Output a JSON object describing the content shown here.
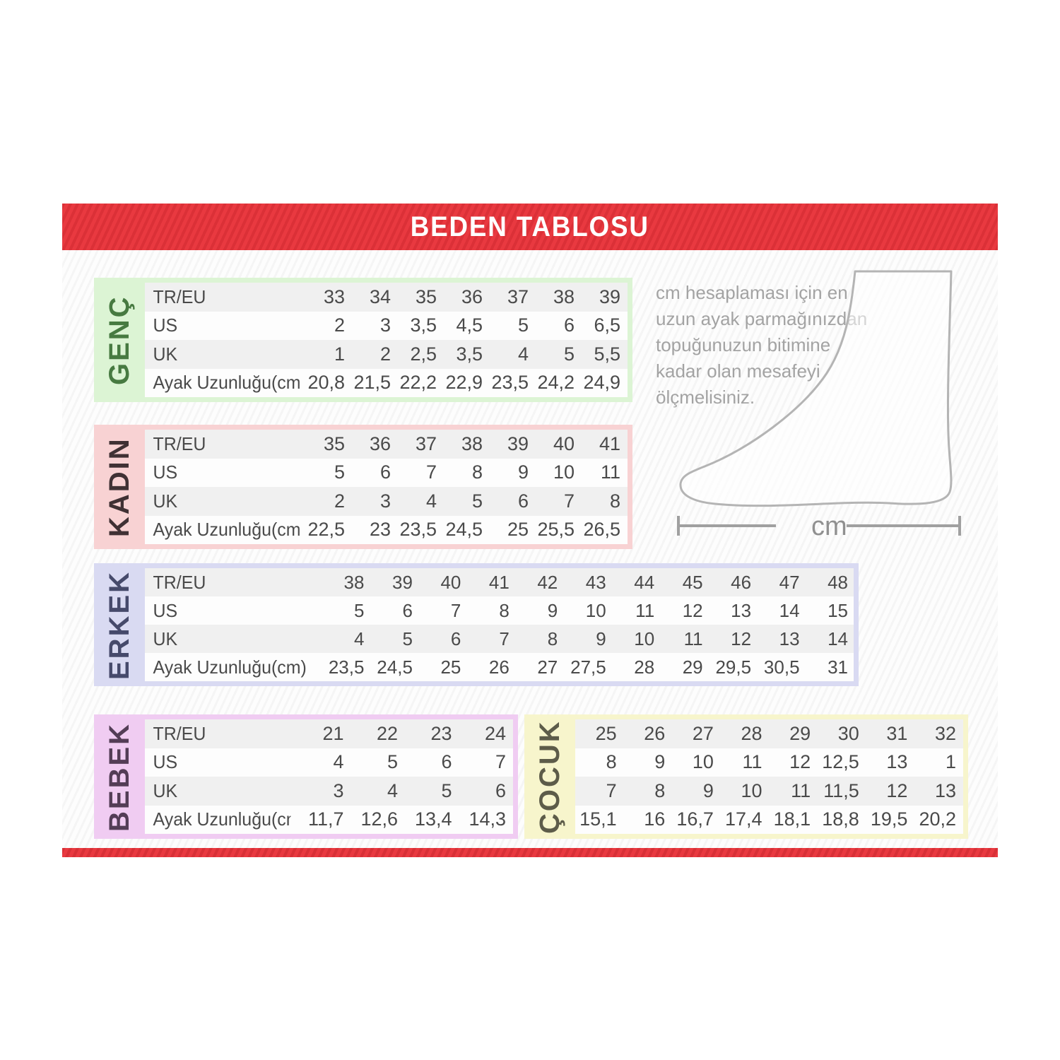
{
  "title": "BEDEN TABLOSU",
  "info": {
    "text": "cm hesaplaması için en uzun ayak parmağınızdan topuğunuzun bitimine kadar olan mesafeyi ölçmelisiniz.",
    "measure_label": "cm"
  },
  "colors": {
    "accent_red": "#e8333a",
    "table_text": "#4a4a4a",
    "info_text": "#a3a3a3",
    "foot_outline": "#b4b4b4",
    "measure_line": "#a0a0a0"
  },
  "tables": [
    {
      "key": "genc",
      "label": "GENÇ",
      "frame_color": "#dcf4d4",
      "label_color": "#477a41",
      "row_headers": [
        "TR/EU",
        "US",
        "UK",
        "Ayak Uzunluğu(cm)"
      ],
      "rows": [
        [
          "33",
          "34",
          "35",
          "36",
          "37",
          "38",
          "39"
        ],
        [
          "2",
          "3",
          "3,5",
          "4,5",
          "5",
          "6",
          "6,5"
        ],
        [
          "1",
          "2",
          "2,5",
          "3,5",
          "4",
          "5",
          "5,5"
        ],
        [
          "20,8",
          "21,5",
          "22,2",
          "22,9",
          "23,5",
          "24,2",
          "24,9"
        ]
      ]
    },
    {
      "key": "kadin",
      "label": "KADIN",
      "frame_color": "#f8d2d3",
      "label_color": "#403134",
      "row_headers": [
        "TR/EU",
        "US",
        "UK",
        "Ayak Uzunluğu(cm)"
      ],
      "rows": [
        [
          "35",
          "36",
          "37",
          "38",
          "39",
          "40",
          "41"
        ],
        [
          "5",
          "6",
          "7",
          "8",
          "9",
          "10",
          "11"
        ],
        [
          "2",
          "3",
          "4",
          "5",
          "6",
          "7",
          "8"
        ],
        [
          "22,5",
          "23",
          "23,5",
          "24,5",
          "25",
          "25,5",
          "26,5"
        ]
      ]
    },
    {
      "key": "erkek",
      "label": "ERKEK",
      "frame_color": "#d9daf2",
      "label_color": "#464a6b",
      "row_headers": [
        "TR/EU",
        "US",
        "UK",
        "Ayak Uzunluğu(cm)"
      ],
      "rows": [
        [
          "38",
          "39",
          "40",
          "41",
          "42",
          "43",
          "44",
          "45",
          "46",
          "47",
          "48"
        ],
        [
          "5",
          "6",
          "7",
          "8",
          "9",
          "10",
          "11",
          "12",
          "13",
          "14",
          "15"
        ],
        [
          "4",
          "5",
          "6",
          "7",
          "8",
          "9",
          "10",
          "11",
          "12",
          "13",
          "14"
        ],
        [
          "23,5",
          "24,5",
          "25",
          "26",
          "27",
          "27,5",
          "28",
          "29",
          "29,5",
          "30,5",
          "31"
        ]
      ]
    },
    {
      "key": "bebek",
      "label": "BEBEK",
      "frame_color": "#f0ccf2",
      "label_color": "#533d56",
      "row_headers": [
        "TR/EU",
        "US",
        "UK",
        "Ayak Uzunluğu(cm)"
      ],
      "rows": [
        [
          "21",
          "22",
          "23",
          "24"
        ],
        [
          "4",
          "5",
          "6",
          "7"
        ],
        [
          "3",
          "4",
          "5",
          "6"
        ],
        [
          "11,7",
          "12,6",
          "13,4",
          "14,3"
        ]
      ]
    },
    {
      "key": "cocuk",
      "label": "ÇOCUK",
      "frame_color": "#f7f5cc",
      "label_color": "#5d5c49",
      "row_headers": [],
      "rows": [
        [
          "25",
          "26",
          "27",
          "28",
          "29",
          "30",
          "31",
          "32"
        ],
        [
          "8",
          "9",
          "10",
          "11",
          "12",
          "12,5",
          "13",
          "1"
        ],
        [
          "7",
          "8",
          "9",
          "10",
          "11",
          "11,5",
          "12",
          "13"
        ],
        [
          "15,1",
          "16",
          "16,7",
          "17,4",
          "18,1",
          "18,8",
          "19,5",
          "20,2"
        ]
      ]
    }
  ]
}
